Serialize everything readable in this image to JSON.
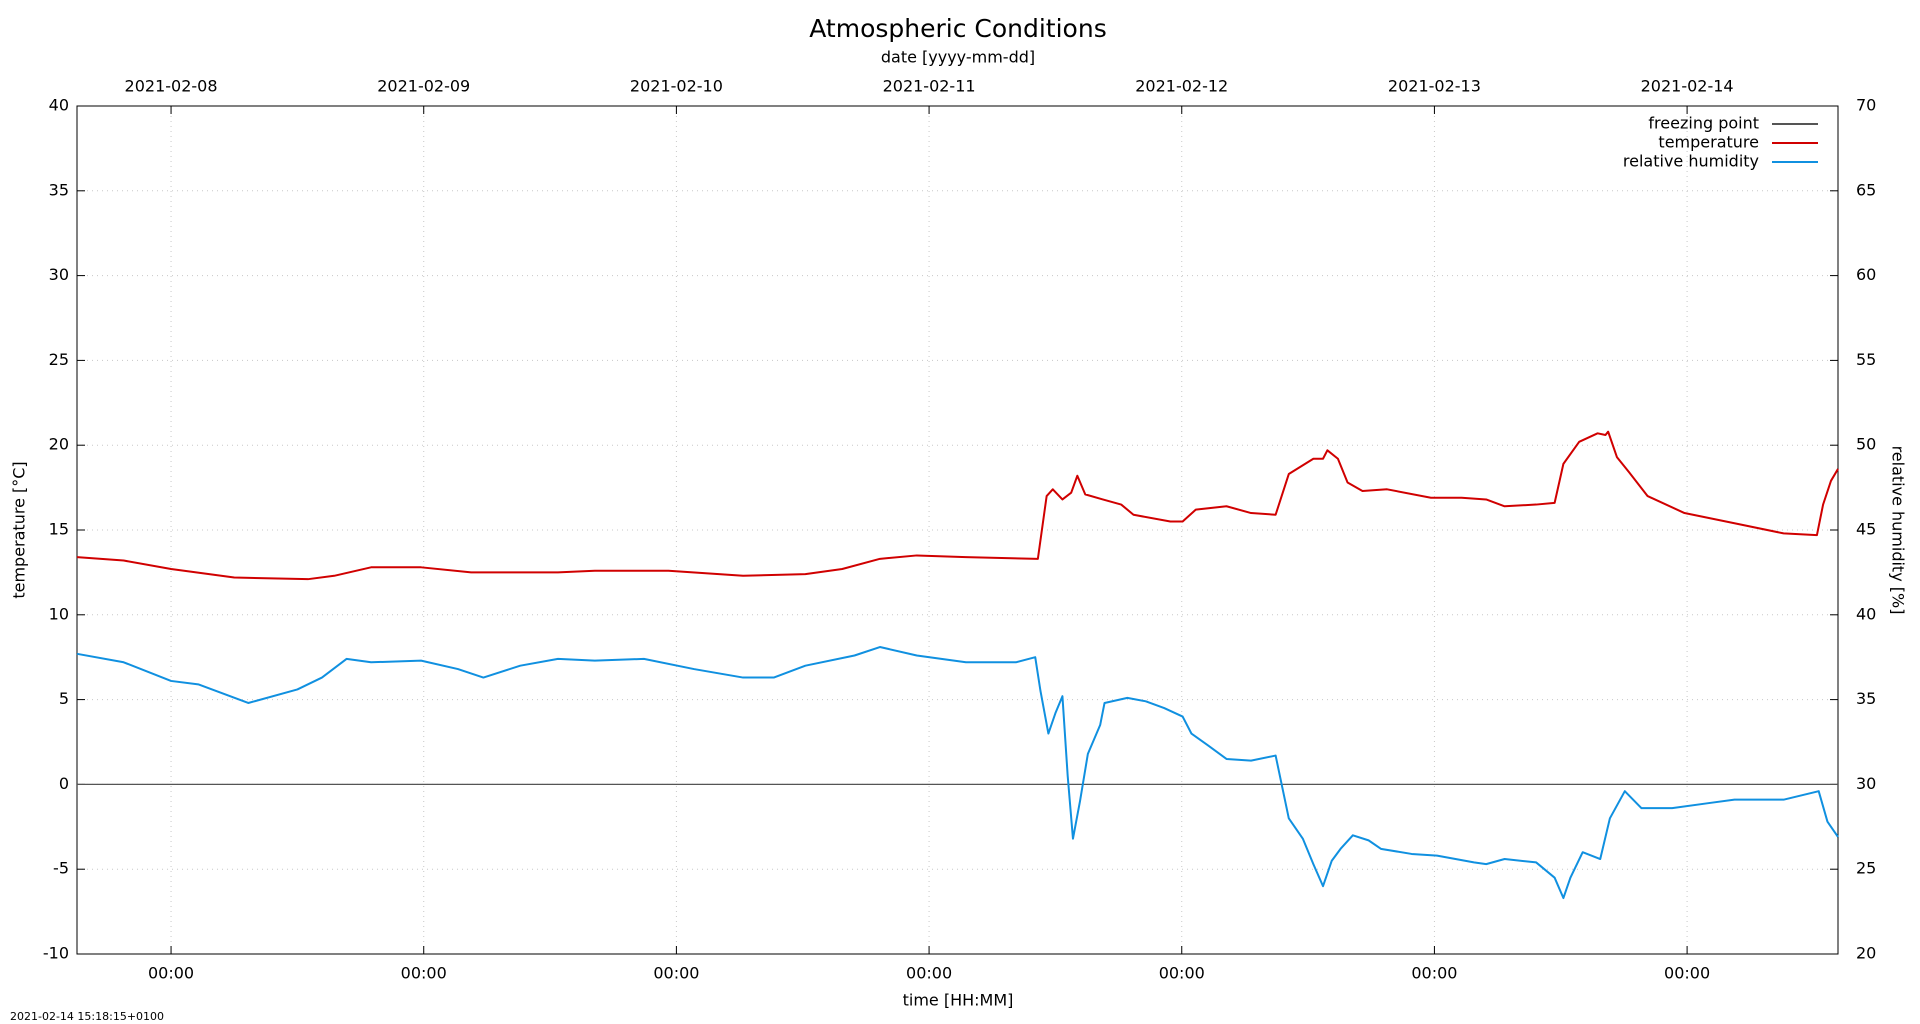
{
  "chart_data": {
    "type": "line",
    "title": "Atmospheric Conditions",
    "x2label": "date [yyyy-mm-dd]",
    "xlabel": "time [HH:MM]",
    "ylabel": "temperature [°C]",
    "y2label": "relative humidity [%]",
    "timestamp": "2021-02-14 15:18:15+0100",
    "xlim": [
      "2021-02-07 15:04",
      "2021-02-14 14:20"
    ],
    "xticks": [
      {
        "value": "2021-02-08 00:00",
        "label": "00:00"
      },
      {
        "value": "2021-02-09 00:00",
        "label": "00:00"
      },
      {
        "value": "2021-02-10 00:00",
        "label": "00:00"
      },
      {
        "value": "2021-02-11 00:00",
        "label": "00:00"
      },
      {
        "value": "2021-02-12 00:00",
        "label": "00:00"
      },
      {
        "value": "2021-02-13 00:00",
        "label": "00:00"
      },
      {
        "value": "2021-02-14 00:00",
        "label": "00:00"
      }
    ],
    "x2ticks": [
      "2021-02-08",
      "2021-02-09",
      "2021-02-10",
      "2021-02-11",
      "2021-02-12",
      "2021-02-13",
      "2021-02-14"
    ],
    "ylim": [
      -10,
      40
    ],
    "yticks": [
      -10,
      -5,
      0,
      5,
      10,
      15,
      20,
      25,
      30,
      35,
      40
    ],
    "y2lim": [
      20,
      70
    ],
    "y2ticks": [
      20,
      25,
      30,
      35,
      40,
      45,
      50,
      55,
      60,
      65,
      70
    ],
    "grid": true,
    "legend": "top-right",
    "series": [
      {
        "name": "freezing point",
        "color": "#555555",
        "x": [
          "2021-02-07 15:04",
          "2021-02-14 14:20"
        ],
        "values": [
          0,
          0
        ]
      },
      {
        "name": "temperature",
        "color": "#d00000",
        "x": [
          "2021-02-07 15:04",
          "2021-02-07 19:30",
          "2021-02-08 00:00",
          "2021-02-08 06:00",
          "2021-02-08 13:00",
          "2021-02-08 15:30",
          "2021-02-08 19:00",
          "2021-02-08 23:45",
          "2021-02-09 04:30",
          "2021-02-09 12:45",
          "2021-02-09 16:15",
          "2021-02-09 23:15",
          "2021-02-10 06:20",
          "2021-02-10 12:15",
          "2021-02-10 15:45",
          "2021-02-10 19:20",
          "2021-02-10 22:50",
          "2021-02-11 03:30",
          "2021-02-11 10:20",
          "2021-02-11 11:10",
          "2021-02-11 11:45",
          "2021-02-11 12:40",
          "2021-02-11 13:30",
          "2021-02-11 14:05",
          "2021-02-11 14:50",
          "2021-02-11 16:30",
          "2021-02-11 18:15",
          "2021-02-11 19:25",
          "2021-02-11 22:55",
          "2021-02-12 00:05",
          "2021-02-12 01:20",
          "2021-02-12 04:15",
          "2021-02-12 06:35",
          "2021-02-12 08:55",
          "2021-02-12 10:10",
          "2021-02-12 12:30",
          "2021-02-12 13:25",
          "2021-02-12 13:50",
          "2021-02-12 14:50",
          "2021-02-12 15:45",
          "2021-02-12 17:10",
          "2021-02-12 19:30",
          "2021-02-12 23:40",
          "2021-02-13 02:35",
          "2021-02-13 04:55",
          "2021-02-13 06:40",
          "2021-02-13 09:40",
          "2021-02-13 11:25",
          "2021-02-13 12:15",
          "2021-02-13 13:45",
          "2021-02-13 15:30",
          "2021-02-13 16:15",
          "2021-02-13 16:30",
          "2021-02-13 17:20",
          "2021-02-13 18:30",
          "2021-02-13 20:15",
          "2021-02-13 23:45",
          "2021-02-14 04:30",
          "2021-02-14 09:10",
          "2021-02-14 12:20",
          "2021-02-14 12:55",
          "2021-02-14 13:40",
          "2021-02-14 14:20"
        ],
        "values": [
          13.4,
          13.2,
          12.7,
          12.2,
          12.1,
          12.3,
          12.8,
          12.8,
          12.5,
          12.5,
          12.6,
          12.6,
          12.3,
          12.4,
          12.7,
          13.3,
          13.5,
          13.4,
          13.3,
          17.0,
          17.4,
          16.8,
          17.2,
          18.2,
          17.1,
          16.8,
          16.5,
          15.9,
          15.5,
          15.5,
          16.2,
          16.4,
          16.0,
          15.9,
          18.3,
          19.2,
          19.2,
          19.7,
          19.2,
          17.8,
          17.3,
          17.4,
          16.9,
          16.9,
          16.8,
          16.4,
          16.5,
          16.6,
          18.9,
          20.2,
          20.7,
          20.6,
          20.8,
          19.3,
          18.4,
          17.0,
          16.0,
          15.4,
          14.8,
          14.7,
          16.5,
          17.9,
          18.6
        ]
      },
      {
        "name": "relative humidity",
        "color": "#1090e0",
        "axis": "y2",
        "x": [
          "2021-02-07 15:04",
          "2021-02-07 19:30",
          "2021-02-08 00:00",
          "2021-02-08 02:35",
          "2021-02-08 07:20",
          "2021-02-08 12:00",
          "2021-02-08 14:20",
          "2021-02-08 16:40",
          "2021-02-08 19:00",
          "2021-02-08 23:45",
          "2021-02-09 03:15",
          "2021-02-09 05:40",
          "2021-02-09 09:10",
          "2021-02-09 12:45",
          "2021-02-09 16:15",
          "2021-02-09 20:55",
          "2021-02-10 01:40",
          "2021-02-10 06:20",
          "2021-02-10 09:15",
          "2021-02-10 12:15",
          "2021-02-10 16:55",
          "2021-02-10 19:20",
          "2021-02-10 22:50",
          "2021-02-11 03:30",
          "2021-02-11 08:15",
          "2021-02-11 10:05",
          "2021-02-11 10:35",
          "2021-02-11 11:20",
          "2021-02-11 12:00",
          "2021-02-11 12:40",
          "2021-02-11 13:10",
          "2021-02-11 13:40",
          "2021-02-11 14:20",
          "2021-02-11 15:05",
          "2021-02-11 16:15",
          "2021-02-11 16:40",
          "2021-02-11 18:50",
          "2021-02-11 20:35",
          "2021-02-11 22:20",
          "2021-02-12 00:05",
          "2021-02-12 00:55",
          "2021-02-12 02:30",
          "2021-02-12 04:15",
          "2021-02-12 06:35",
          "2021-02-12 08:55",
          "2021-02-12 10:10",
          "2021-02-12 11:30",
          "2021-02-12 12:30",
          "2021-02-12 13:25",
          "2021-02-12 14:15",
          "2021-02-12 15:05",
          "2021-02-12 16:15",
          "2021-02-12 17:45",
          "2021-02-12 18:55",
          "2021-02-12 21:50",
          "2021-02-13 00:15",
          "2021-02-13 03:45",
          "2021-02-13 04:55",
          "2021-02-13 06:40",
          "2021-02-13 09:40",
          "2021-02-13 11:25",
          "2021-02-13 12:15",
          "2021-02-13 12:55",
          "2021-02-13 14:05",
          "2021-02-13 15:45",
          "2021-02-13 16:40",
          "2021-02-13 18:05",
          "2021-02-13 19:40",
          "2021-02-13 22:35",
          "2021-02-14 02:05",
          "2021-02-14 04:30",
          "2021-02-14 09:10",
          "2021-02-14 12:30",
          "2021-02-14 13:20",
          "2021-02-14 14:20"
        ],
        "values": [
          37.7,
          37.2,
          36.1,
          35.9,
          34.8,
          35.6,
          36.3,
          37.4,
          37.2,
          37.3,
          36.8,
          36.3,
          37.0,
          37.4,
          37.3,
          37.4,
          36.8,
          36.3,
          36.3,
          37.0,
          37.6,
          38.1,
          37.6,
          37.2,
          37.2,
          37.5,
          35.5,
          33.0,
          34.2,
          35.2,
          30.5,
          26.8,
          29.0,
          31.8,
          33.5,
          34.8,
          35.1,
          34.9,
          34.5,
          34.0,
          33.0,
          32.3,
          31.5,
          31.4,
          31.7,
          28.0,
          26.8,
          25.3,
          24.0,
          25.5,
          26.2,
          27.0,
          26.7,
          26.2,
          25.9,
          25.8,
          25.4,
          25.3,
          25.6,
          25.4,
          24.5,
          23.3,
          24.5,
          26.0,
          25.6,
          28.0,
          29.6,
          28.6,
          28.6,
          28.9,
          29.1,
          29.1,
          29.6,
          27.8,
          26.9
        ]
      }
    ]
  }
}
